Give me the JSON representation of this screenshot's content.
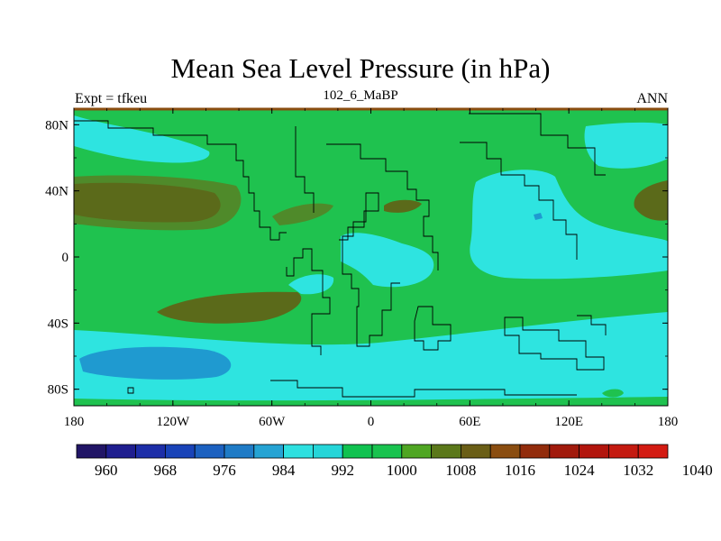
{
  "title": "Mean Sea Level Pressure (in hPa)",
  "subtitle_left": "Expt = tfkeu",
  "subtitle_center": "102_6_MaBP",
  "subtitle_right": "ANN",
  "lat_labels": [
    "80N",
    "40N",
    "0",
    "40S",
    "80S"
  ],
  "lon_labels": [
    "180",
    "120W",
    "60W",
    "0",
    "60E",
    "120E",
    "180"
  ],
  "colorbar": {
    "colors": [
      "#211566",
      "#1f1e8f",
      "#1d2ea8",
      "#1943b8",
      "#1c61c0",
      "#1f7bc6",
      "#25a3d3",
      "#2ee0e0",
      "#25d5d8",
      "#10c250",
      "#19c34f",
      "#4fa623",
      "#5b781a",
      "#6a5e16",
      "#8a4d10",
      "#922c0c",
      "#a11a0c",
      "#b2150d",
      "#c41a10",
      "#d31b12"
    ],
    "labels": [
      "960",
      "968",
      "976",
      "984",
      "992",
      "1000",
      "1008",
      "1016",
      "1024",
      "1032",
      "1040"
    ]
  },
  "legend_colors": {
    "green_1008": "#10c250",
    "cyan_1000": "#2ee0e0",
    "blue_992": "#1f9ad0",
    "olive_1016": "#4f8a2a",
    "brown_1016": "#5b6a1a",
    "brown_1024": "#8a4d10"
  }
}
